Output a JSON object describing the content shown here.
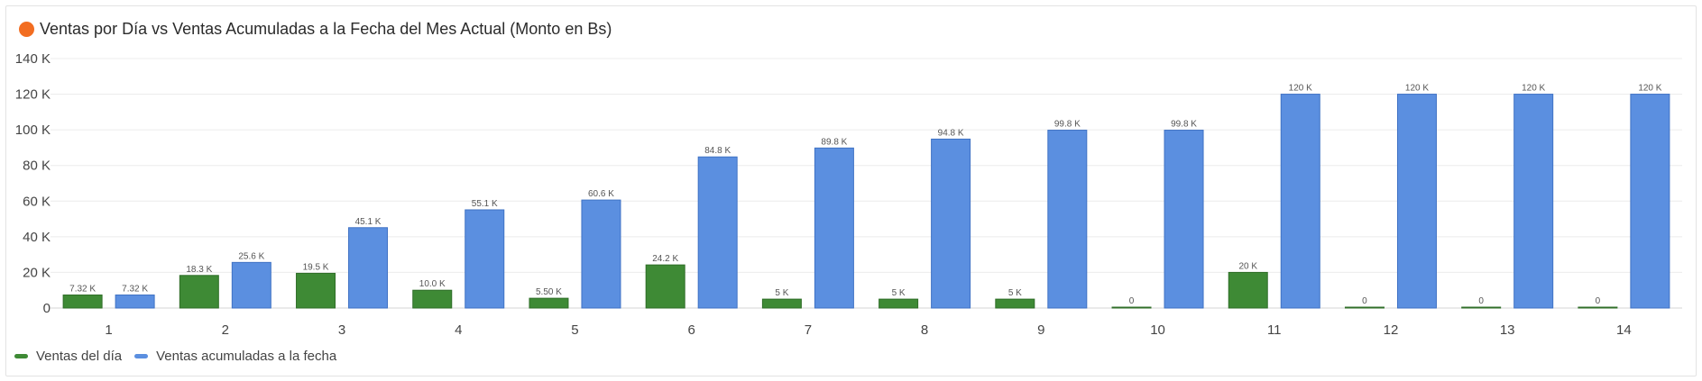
{
  "header": {
    "title": "Ventas por Día vs Ventas Acumuladas a la Fecha del Mes Actual (Monto en Bs)",
    "dot_color": "#f26d21"
  },
  "chart_data": {
    "type": "bar",
    "title": "Ventas por Día vs Ventas Acumuladas a la Fecha del Mes Actual (Monto en Bs)",
    "xlabel": "",
    "ylabel": "",
    "ylim": [
      0,
      140000
    ],
    "y_ticks": [
      0,
      20000,
      40000,
      60000,
      80000,
      100000,
      120000,
      140000
    ],
    "y_tick_labels": [
      "0",
      "20 K",
      "40 K",
      "60 K",
      "80 K",
      "100 K",
      "120 K",
      "140 K"
    ],
    "grid": true,
    "legend_position": "bottom-left",
    "categories": [
      "1",
      "2",
      "3",
      "4",
      "5",
      "6",
      "7",
      "8",
      "9",
      "10",
      "11",
      "12",
      "13",
      "14"
    ],
    "series": [
      {
        "name": "Ventas del día",
        "color": "#3e8a35",
        "values": [
          7320,
          18300,
          19500,
          10000,
          5500,
          24200,
          5000,
          5000,
          5000,
          0,
          20000,
          0,
          0,
          0
        ],
        "labels": [
          "7.32 K",
          "18.3 K",
          "19.5 K",
          "10.0 K",
          "5.50 K",
          "24.2 K",
          "5 K",
          "5 K",
          "5 K",
          "0",
          "20 K",
          "0",
          "0",
          "0"
        ]
      },
      {
        "name": "Ventas acumuladas a la fecha",
        "color": "#5b8fe0",
        "values": [
          7320,
          25600,
          45100,
          55100,
          60600,
          84800,
          89800,
          94800,
          99800,
          99800,
          120000,
          120000,
          120000,
          120000
        ],
        "labels": [
          "7.32 K",
          "25.6 K",
          "45.1 K",
          "55.1 K",
          "60.6 K",
          "84.8 K",
          "89.8 K",
          "94.8 K",
          "99.8 K",
          "99.8 K",
          "120 K",
          "120 K",
          "120 K",
          "120 K"
        ]
      }
    ]
  }
}
